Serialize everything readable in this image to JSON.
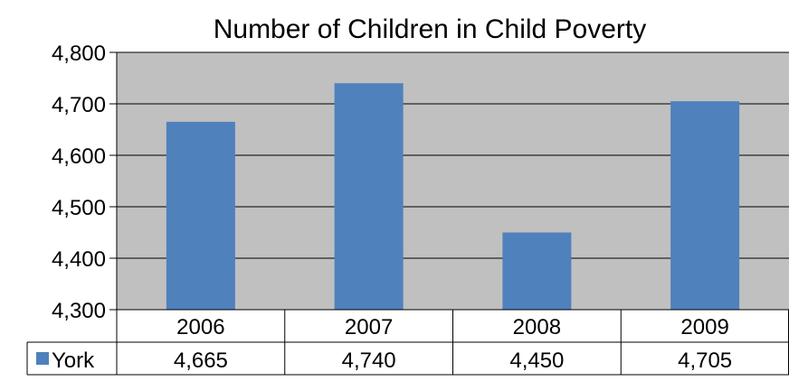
{
  "chart_data": {
    "type": "bar",
    "title": "Number of Children in Child Poverty",
    "categories": [
      "2006",
      "2007",
      "2008",
      "2009"
    ],
    "series": [
      {
        "name": "York",
        "values": [
          4665,
          4740,
          4450,
          4705
        ],
        "labels": [
          "4,665",
          "4,740",
          "4,450",
          "4,705"
        ]
      }
    ],
    "ylim": [
      4300,
      4800
    ],
    "yticks": [
      4300,
      4400,
      4500,
      4600,
      4700,
      4800
    ],
    "ytick_labels": [
      "4,300",
      "4,400",
      "4,500",
      "4,600",
      "4,700",
      "4,800"
    ],
    "grid": true,
    "data_table": true,
    "colors": {
      "bar": "#4f81bd",
      "plot_bg": "#c0c0c0",
      "grid": "#000000"
    }
  }
}
